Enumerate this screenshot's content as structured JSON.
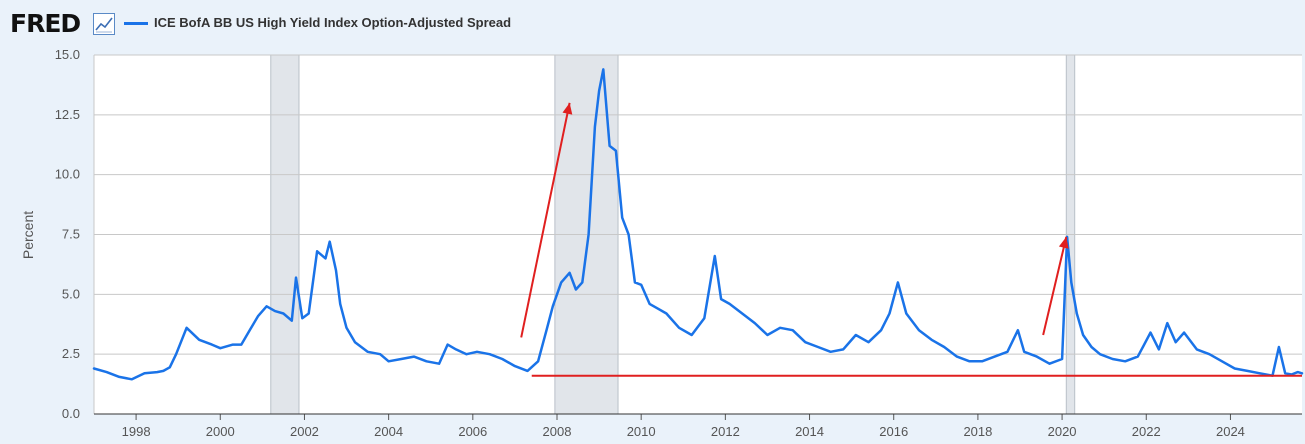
{
  "header": {
    "logo_text": "FRED",
    "logo_icon": "line-chart-icon",
    "legend_label": "ICE BofA BB US High Yield Index Option-Adjusted Spread"
  },
  "colors": {
    "series": "#1a73e8",
    "recession": "#e1e5ea",
    "annotation": "#e01f1f",
    "grid": "#c8c8c8",
    "background": "#eaf2fa"
  },
  "chart_data": {
    "type": "line",
    "ylabel": "Percent",
    "xlabel": "",
    "ylim": [
      0,
      15
    ],
    "xlim": [
      1997.0,
      2025.7
    ],
    "grid": true,
    "legend": "top-left",
    "y_ticks": [
      "0.0",
      "2.5",
      "5.0",
      "7.5",
      "10.0",
      "12.5",
      "15.0"
    ],
    "x_ticks": [
      "1998",
      "2000",
      "2002",
      "2004",
      "2006",
      "2008",
      "2010",
      "2012",
      "2014",
      "2016",
      "2018",
      "2020",
      "2022",
      "2024"
    ],
    "recessions": [
      [
        2001.2,
        2001.87
      ],
      [
        2007.95,
        2009.45
      ],
      [
        2020.1,
        2020.3
      ]
    ],
    "series": [
      {
        "name": "ICE BofA BB US High Yield Index Option-Adjusted Spread",
        "x": [
          1997.0,
          1997.3,
          1997.6,
          1997.9,
          1998.2,
          1998.5,
          1998.65,
          1998.8,
          1998.95,
          1999.2,
          1999.5,
          1999.8,
          2000.0,
          2000.3,
          2000.5,
          2000.7,
          2000.9,
          2001.1,
          2001.3,
          2001.5,
          2001.7,
          2001.8,
          2001.95,
          2002.1,
          2002.3,
          2002.5,
          2002.6,
          2002.75,
          2002.85,
          2003.0,
          2003.2,
          2003.5,
          2003.8,
          2004.0,
          2004.3,
          2004.6,
          2004.9,
          2005.2,
          2005.4,
          2005.6,
          2005.85,
          2006.1,
          2006.4,
          2006.7,
          2007.0,
          2007.3,
          2007.55,
          2007.75,
          2007.9,
          2008.1,
          2008.3,
          2008.45,
          2008.6,
          2008.75,
          2008.9,
          2009.0,
          2009.1,
          2009.25,
          2009.4,
          2009.55,
          2009.7,
          2009.85,
          2010.0,
          2010.2,
          2010.4,
          2010.6,
          2010.9,
          2011.2,
          2011.5,
          2011.75,
          2011.9,
          2012.1,
          2012.4,
          2012.7,
          2013.0,
          2013.3,
          2013.6,
          2013.9,
          2014.2,
          2014.5,
          2014.8,
          2015.1,
          2015.4,
          2015.7,
          2015.9,
          2016.1,
          2016.3,
          2016.6,
          2016.9,
          2017.2,
          2017.5,
          2017.8,
          2018.1,
          2018.4,
          2018.7,
          2018.95,
          2019.1,
          2019.4,
          2019.7,
          2020.0,
          2020.12,
          2020.22,
          2020.35,
          2020.5,
          2020.7,
          2020.9,
          2021.2,
          2021.5,
          2021.8,
          2022.1,
          2022.3,
          2022.5,
          2022.7,
          2022.9,
          2023.2,
          2023.5,
          2023.8,
          2024.1,
          2024.4,
          2024.7,
          2025.0,
          2025.15,
          2025.3,
          2025.45,
          2025.6,
          2025.7
        ],
        "values": [
          1.9,
          1.75,
          1.55,
          1.45,
          1.7,
          1.75,
          1.8,
          1.95,
          2.5,
          3.6,
          3.1,
          2.9,
          2.75,
          2.9,
          2.9,
          3.5,
          4.1,
          4.5,
          4.3,
          4.2,
          3.9,
          5.7,
          4.0,
          4.2,
          6.8,
          6.5,
          7.2,
          6.0,
          4.6,
          3.6,
          3.0,
          2.6,
          2.5,
          2.2,
          2.3,
          2.4,
          2.2,
          2.1,
          2.9,
          2.7,
          2.5,
          2.6,
          2.5,
          2.3,
          2.0,
          1.8,
          2.2,
          3.5,
          4.5,
          5.5,
          5.9,
          5.2,
          5.5,
          7.5,
          12.0,
          13.5,
          14.4,
          11.2,
          11.0,
          8.2,
          7.5,
          5.5,
          5.4,
          4.6,
          4.4,
          4.2,
          3.6,
          3.3,
          4.0,
          6.6,
          4.8,
          4.6,
          4.2,
          3.8,
          3.3,
          3.6,
          3.5,
          3.0,
          2.8,
          2.6,
          2.7,
          3.3,
          3.0,
          3.5,
          4.2,
          5.5,
          4.2,
          3.5,
          3.1,
          2.8,
          2.4,
          2.2,
          2.2,
          2.4,
          2.6,
          3.5,
          2.6,
          2.4,
          2.1,
          2.3,
          7.4,
          5.5,
          4.2,
          3.3,
          2.8,
          2.5,
          2.3,
          2.2,
          2.4,
          3.4,
          2.7,
          3.8,
          3.0,
          3.4,
          2.7,
          2.5,
          2.2,
          1.9,
          1.8,
          1.7,
          1.6,
          2.8,
          1.7,
          1.65,
          1.75,
          1.7
        ]
      }
    ],
    "annotations": [
      {
        "type": "arrow",
        "from": [
          2007.15,
          3.2
        ],
        "to": [
          2008.3,
          13.0
        ]
      },
      {
        "type": "arrow",
        "from": [
          2019.55,
          3.3
        ],
        "to": [
          2020.1,
          7.4
        ]
      },
      {
        "type": "hline",
        "y": 1.6,
        "x_start": 2007.4,
        "x_end": 2025.7
      }
    ]
  }
}
